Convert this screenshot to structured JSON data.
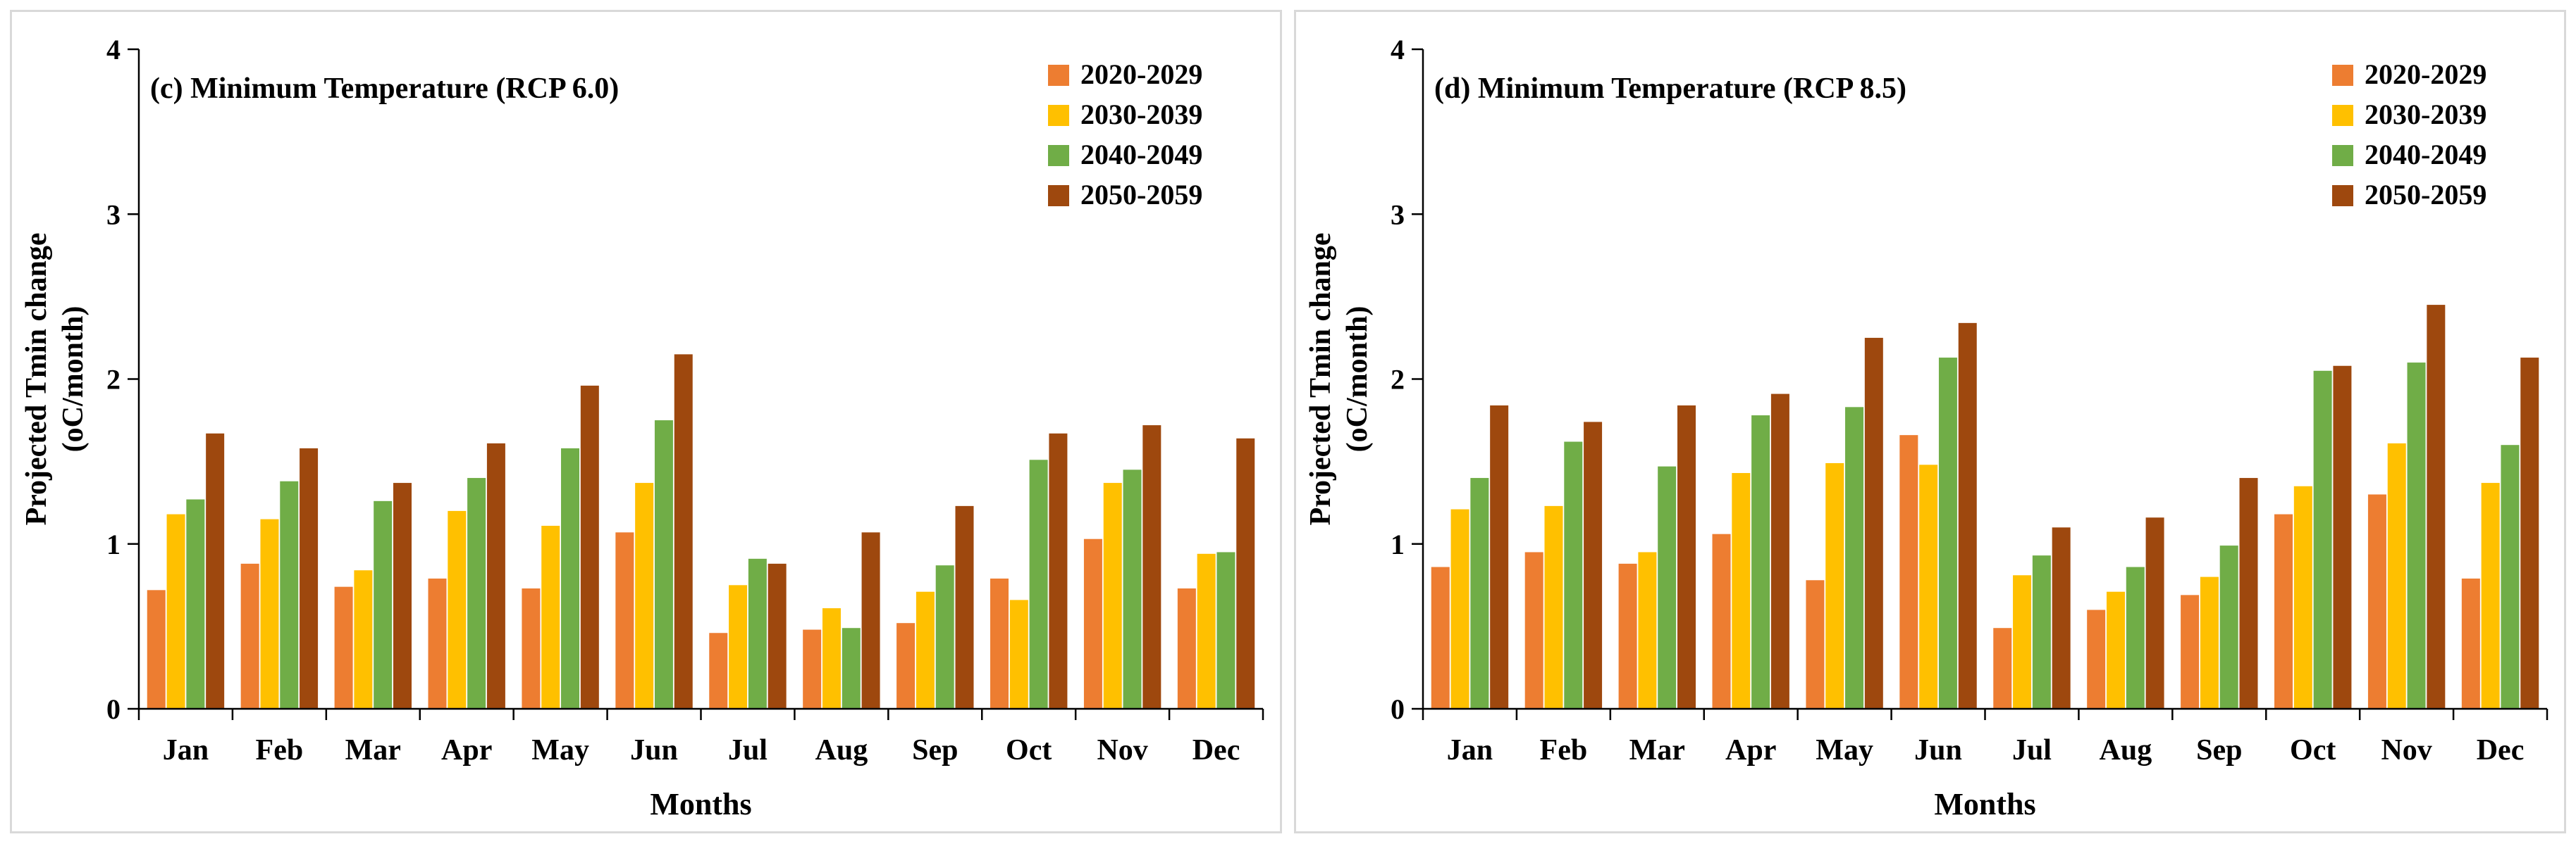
{
  "chart_data": [
    {
      "type": "bar",
      "title": "(c) Minimum Temperature (RCP 6.0)",
      "xlabel": "Months",
      "ylabel": [
        "Projected Tmin change",
        "(oC/month)"
      ],
      "ylim": [
        0,
        4
      ],
      "yticks": [
        0,
        1,
        2,
        3,
        4
      ],
      "legend_position": "top-right",
      "grid": false,
      "categories": [
        "Jan",
        "Feb",
        "Mar",
        "Apr",
        "May",
        "Jun",
        "Jul",
        "Aug",
        "Sep",
        "Oct",
        "Nov",
        "Dec"
      ],
      "series": [
        {
          "name": "2020-2029",
          "color": "#ed7d31",
          "values": [
            0.72,
            0.88,
            0.74,
            0.79,
            0.73,
            1.07,
            0.46,
            0.48,
            0.52,
            0.79,
            1.03,
            0.73
          ]
        },
        {
          "name": "2030-2039",
          "color": "#ffc000",
          "values": [
            1.18,
            1.15,
            0.84,
            1.2,
            1.11,
            1.37,
            0.75,
            0.61,
            0.71,
            0.66,
            1.37,
            0.94
          ]
        },
        {
          "name": "2040-2049",
          "color": "#70ad47",
          "values": [
            1.27,
            1.38,
            1.26,
            1.4,
            1.58,
            1.75,
            0.91,
            0.49,
            0.87,
            1.51,
            1.45,
            0.95
          ]
        },
        {
          "name": "2050-2059",
          "color": "#9e480e",
          "values": [
            1.67,
            1.58,
            1.37,
            1.61,
            1.96,
            2.15,
            0.88,
            1.07,
            1.23,
            1.67,
            1.72,
            1.64
          ]
        }
      ]
    },
    {
      "type": "bar",
      "title": "(d) Minimum Temperature (RCP 8.5)",
      "xlabel": "Months",
      "ylabel": [
        "Projected Tmin change",
        "(oC/month)"
      ],
      "ylim": [
        0,
        4
      ],
      "yticks": [
        0,
        1,
        2,
        3,
        4
      ],
      "legend_position": "top-right",
      "grid": false,
      "categories": [
        "Jan",
        "Feb",
        "Mar",
        "Apr",
        "May",
        "Jun",
        "Jul",
        "Aug",
        "Sep",
        "Oct",
        "Nov",
        "Dec"
      ],
      "series": [
        {
          "name": "2020-2029",
          "color": "#ed7d31",
          "values": [
            0.86,
            0.95,
            0.88,
            1.06,
            0.78,
            1.66,
            0.49,
            0.6,
            0.69,
            1.18,
            1.3,
            0.79
          ]
        },
        {
          "name": "2030-2039",
          "color": "#ffc000",
          "values": [
            1.21,
            1.23,
            0.95,
            1.43,
            1.49,
            1.48,
            0.81,
            0.71,
            0.8,
            1.35,
            1.61,
            1.37
          ]
        },
        {
          "name": "2040-2049",
          "color": "#70ad47",
          "values": [
            1.4,
            1.62,
            1.47,
            1.78,
            1.83,
            2.13,
            0.93,
            0.86,
            0.99,
            2.05,
            2.1,
            1.6
          ]
        },
        {
          "name": "2050-2059",
          "color": "#9e480e",
          "values": [
            1.84,
            1.74,
            1.84,
            1.91,
            2.25,
            2.34,
            1.1,
            1.16,
            1.4,
            2.08,
            2.45,
            2.13
          ]
        }
      ]
    }
  ]
}
